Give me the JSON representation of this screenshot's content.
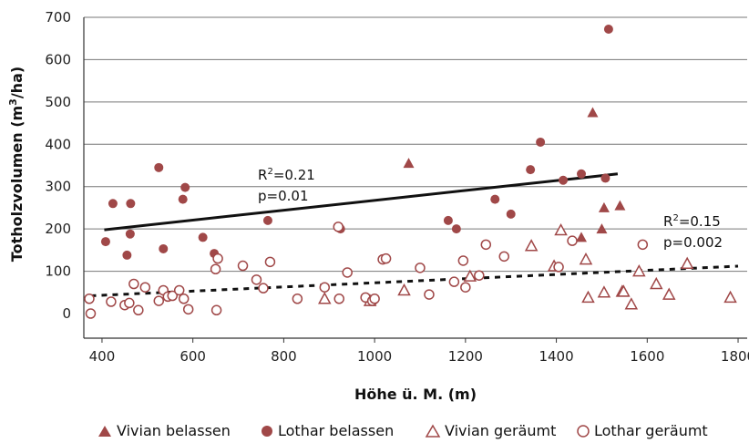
{
  "chart_data": {
    "type": "scatter",
    "xlabel": "Höhe ü. M. (m)",
    "ylabel_main": "Totholzvolumen (m",
    "ylabel_sup": "3",
    "ylabel_tail": "/ha)",
    "xlim": [
      360,
      1820
    ],
    "ylim": [
      0,
      700
    ],
    "x_ticks": [
      "400",
      "600",
      "800",
      "1000",
      "1200",
      "1400",
      "1600",
      "1800"
    ],
    "y_ticks": [
      "0",
      "100",
      "200",
      "300",
      "400",
      "500",
      "600",
      "700"
    ],
    "grid": "horizontal",
    "legend_position": "bottom",
    "colors": {
      "series": "#a04848",
      "line": "#111111",
      "grid": "#777777"
    },
    "series": [
      {
        "name": "Vivian belassen",
        "marker": "triangle",
        "filled": true,
        "points": [
          [
            1075,
            355
          ],
          [
            1480,
            475
          ],
          [
            1455,
            180
          ],
          [
            1505,
            250
          ],
          [
            1500,
            200
          ],
          [
            1540,
            255
          ]
        ]
      },
      {
        "name": "Lothar belassen",
        "marker": "circle",
        "filled": true,
        "points": [
          [
            408,
            170
          ],
          [
            424,
            260
          ],
          [
            455,
            138
          ],
          [
            462,
            188
          ],
          [
            463,
            260
          ],
          [
            525,
            345
          ],
          [
            535,
            153
          ],
          [
            578,
            270
          ],
          [
            583,
            298
          ],
          [
            622,
            180
          ],
          [
            647,
            142
          ],
          [
            765,
            220
          ],
          [
            925,
            200
          ],
          [
            1162,
            220
          ],
          [
            1180,
            200
          ],
          [
            1265,
            270
          ],
          [
            1300,
            235
          ],
          [
            1343,
            340
          ],
          [
            1365,
            405
          ],
          [
            1415,
            315
          ],
          [
            1455,
            330
          ],
          [
            1508,
            320
          ],
          [
            1515,
            672
          ]
        ]
      },
      {
        "name": "Vivian geräumt",
        "marker": "triangle",
        "filled": false,
        "points": [
          [
            890,
            35
          ],
          [
            990,
            30
          ],
          [
            1065,
            55
          ],
          [
            1210,
            88
          ],
          [
            1345,
            160
          ],
          [
            1395,
            112
          ],
          [
            1410,
            197
          ],
          [
            1465,
            128
          ],
          [
            1470,
            38
          ],
          [
            1505,
            50
          ],
          [
            1545,
            52
          ],
          [
            1548,
            52
          ],
          [
            1565,
            22
          ],
          [
            1582,
            100
          ],
          [
            1620,
            70
          ],
          [
            1648,
            45
          ],
          [
            1688,
            118
          ],
          [
            1783,
            38
          ]
        ]
      },
      {
        "name": "Lothar geräumt",
        "marker": "circle",
        "filled": false,
        "points": [
          [
            372,
            35
          ],
          [
            375,
            0
          ],
          [
            420,
            28
          ],
          [
            450,
            20
          ],
          [
            460,
            25
          ],
          [
            470,
            70
          ],
          [
            480,
            8
          ],
          [
            495,
            62
          ],
          [
            525,
            30
          ],
          [
            535,
            55
          ],
          [
            545,
            40
          ],
          [
            555,
            42
          ],
          [
            570,
            55
          ],
          [
            580,
            35
          ],
          [
            590,
            10
          ],
          [
            650,
            105
          ],
          [
            652,
            8
          ],
          [
            655,
            130
          ],
          [
            710,
            113
          ],
          [
            740,
            80
          ],
          [
            755,
            60
          ],
          [
            770,
            122
          ],
          [
            830,
            35
          ],
          [
            890,
            62
          ],
          [
            920,
            205
          ],
          [
            922,
            35
          ],
          [
            940,
            97
          ],
          [
            980,
            38
          ],
          [
            995,
            30
          ],
          [
            1000,
            35
          ],
          [
            1018,
            128
          ],
          [
            1025,
            130
          ],
          [
            1100,
            108
          ],
          [
            1120,
            45
          ],
          [
            1175,
            75
          ],
          [
            1195,
            125
          ],
          [
            1200,
            62
          ],
          [
            1230,
            90
          ],
          [
            1245,
            163
          ],
          [
            1285,
            135
          ],
          [
            1405,
            110
          ],
          [
            1435,
            172
          ],
          [
            1590,
            163
          ]
        ]
      }
    ],
    "trendlines": [
      {
        "style": "solid",
        "x1": 405,
        "y1": 198,
        "x2": 1535,
        "y2": 330,
        "annotation_line1_prefix": "R",
        "annotation_line1_sup": "2",
        "annotation_line1_suffix": "=0.21",
        "annotation_line2": "p=0.01"
      },
      {
        "style": "dashed",
        "x1": 375,
        "y1": 42,
        "x2": 1800,
        "y2": 112,
        "annotation_line1_prefix": "R",
        "annotation_line1_sup": "2",
        "annotation_line1_suffix": "=0.15",
        "annotation_line2": "p=0.002"
      }
    ]
  }
}
